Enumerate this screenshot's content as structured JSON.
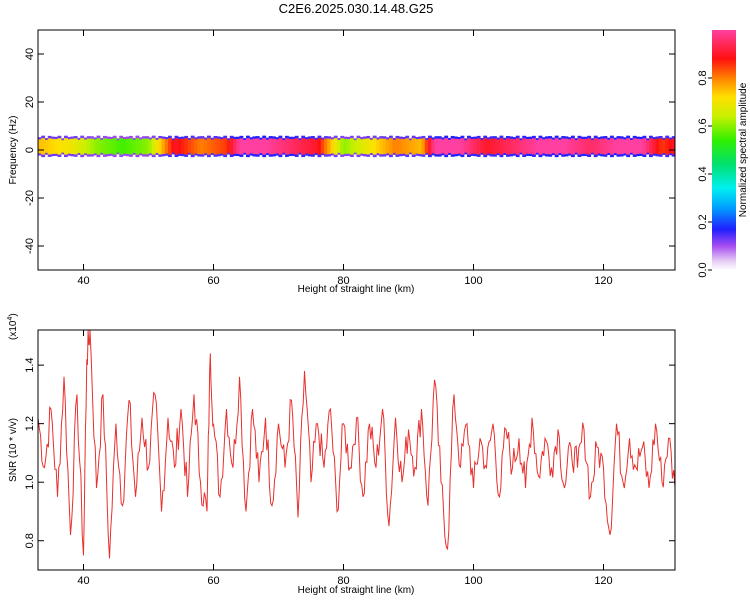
{
  "chart_data": [
    {
      "type": "heatmap",
      "title": "C2E6.2025.030.14.48.G25",
      "xlabel": "Height of straight line (km)",
      "ylabel": "Frequency (Hz)",
      "xlim": [
        33,
        131
      ],
      "ylim": [
        -50,
        50
      ],
      "x_ticks": [
        40,
        60,
        80,
        100,
        120
      ],
      "y_ticks": [
        -40,
        -20,
        0,
        20,
        40
      ],
      "colorbar": {
        "label": "Normalized spectral amplitude",
        "range": [
          0,
          1
        ],
        "ticks": [
          0.0,
          0.2,
          0.4,
          0.6,
          0.8
        ],
        "tick_labels": [
          "0.0",
          "0.2",
          "0.4",
          "0.6",
          "0.8"
        ]
      },
      "band": {
        "center_frequency": 1.5,
        "half_width_hz": 3,
        "x": [
          33,
          38,
          42,
          46,
          50,
          54,
          58,
          62,
          64,
          68,
          72,
          76,
          80,
          84,
          88,
          92,
          94,
          98,
          102,
          106,
          110,
          114,
          118,
          122,
          126,
          129,
          131
        ],
        "peak_amplitude": [
          0.75,
          0.7,
          0.6,
          0.55,
          0.6,
          0.9,
          0.8,
          0.85,
          1.0,
          1.0,
          0.95,
          0.9,
          0.6,
          0.7,
          0.8,
          0.75,
          1.0,
          1.0,
          0.9,
          0.95,
          1.0,
          1.0,
          0.95,
          1.0,
          1.0,
          0.85,
          0.9
        ]
      }
    },
    {
      "type": "line",
      "title": "",
      "xlabel": "Height of straight line (km)",
      "ylabel": "SNR (10 * v/v)",
      "y_multiplier_base": "x10",
      "y_multiplier_exp": "4",
      "xlim": [
        33,
        131
      ],
      "ylim": [
        0.7,
        1.52
      ],
      "x_ticks": [
        40,
        60,
        80,
        100,
        120
      ],
      "y_ticks": [
        0.8,
        1.0,
        1.2,
        1.4
      ],
      "y_tick_labels": [
        "0.8",
        "1.0",
        "1.2",
        "1.4"
      ],
      "color": "#e8302e",
      "series": [
        {
          "x": [
            33,
            34,
            35,
            36,
            37,
            38,
            39,
            40,
            40.5,
            41,
            42,
            43,
            44,
            45,
            46,
            47,
            48,
            49,
            50,
            51,
            52,
            53,
            54,
            55,
            56,
            57,
            58,
            59,
            59.5,
            60,
            61,
            62,
            63,
            64,
            65,
            66,
            67,
            68,
            69,
            70,
            71,
            72,
            73,
            74,
            75,
            76,
            77,
            78,
            79,
            80,
            81,
            82,
            83,
            84,
            85,
            86,
            87,
            88,
            89,
            90,
            91,
            92,
            93,
            94,
            95,
            96,
            97,
            98,
            99,
            100,
            101,
            102,
            103,
            104,
            105,
            106,
            107,
            108,
            109,
            110,
            111,
            112,
            113,
            114,
            115,
            116,
            117,
            118,
            119,
            120,
            121,
            122,
            123,
            124,
            125,
            126,
            127,
            128,
            129,
            130,
            131
          ],
          "values": [
            1.22,
            1.05,
            1.25,
            0.95,
            1.36,
            0.82,
            1.3,
            0.75,
            1.42,
            1.52,
            0.98,
            1.3,
            0.74,
            1.2,
            0.92,
            1.28,
            0.95,
            1.22,
            1.05,
            1.3,
            0.9,
            1.22,
            1.05,
            1.25,
            0.95,
            1.3,
            1.0,
            0.9,
            1.44,
            1.2,
            0.95,
            1.25,
            1.05,
            1.36,
            0.9,
            1.25,
            1.0,
            1.22,
            0.92,
            1.2,
            1.05,
            1.28,
            0.88,
            1.38,
            1.0,
            1.2,
            1.05,
            1.25,
            0.9,
            1.2,
            1.05,
            1.22,
            0.95,
            1.2,
            1.05,
            1.25,
            0.85,
            1.22,
            1.0,
            1.18,
            1.05,
            1.25,
            0.92,
            1.35,
            1.0,
            0.77,
            1.3,
            1.05,
            1.2,
            0.98,
            1.15,
            1.05,
            1.2,
            0.95,
            1.18,
            1.05,
            1.15,
            0.98,
            1.22,
            1.02,
            1.15,
            1.05,
            1.18,
            0.98,
            1.12,
            1.05,
            1.18,
            0.95,
            1.12,
            1.05,
            0.82,
            1.2,
            1.0,
            1.15,
            1.05,
            1.12,
            0.98,
            1.2,
            1.0,
            1.15,
            0.98
          ]
        }
      ]
    }
  ]
}
